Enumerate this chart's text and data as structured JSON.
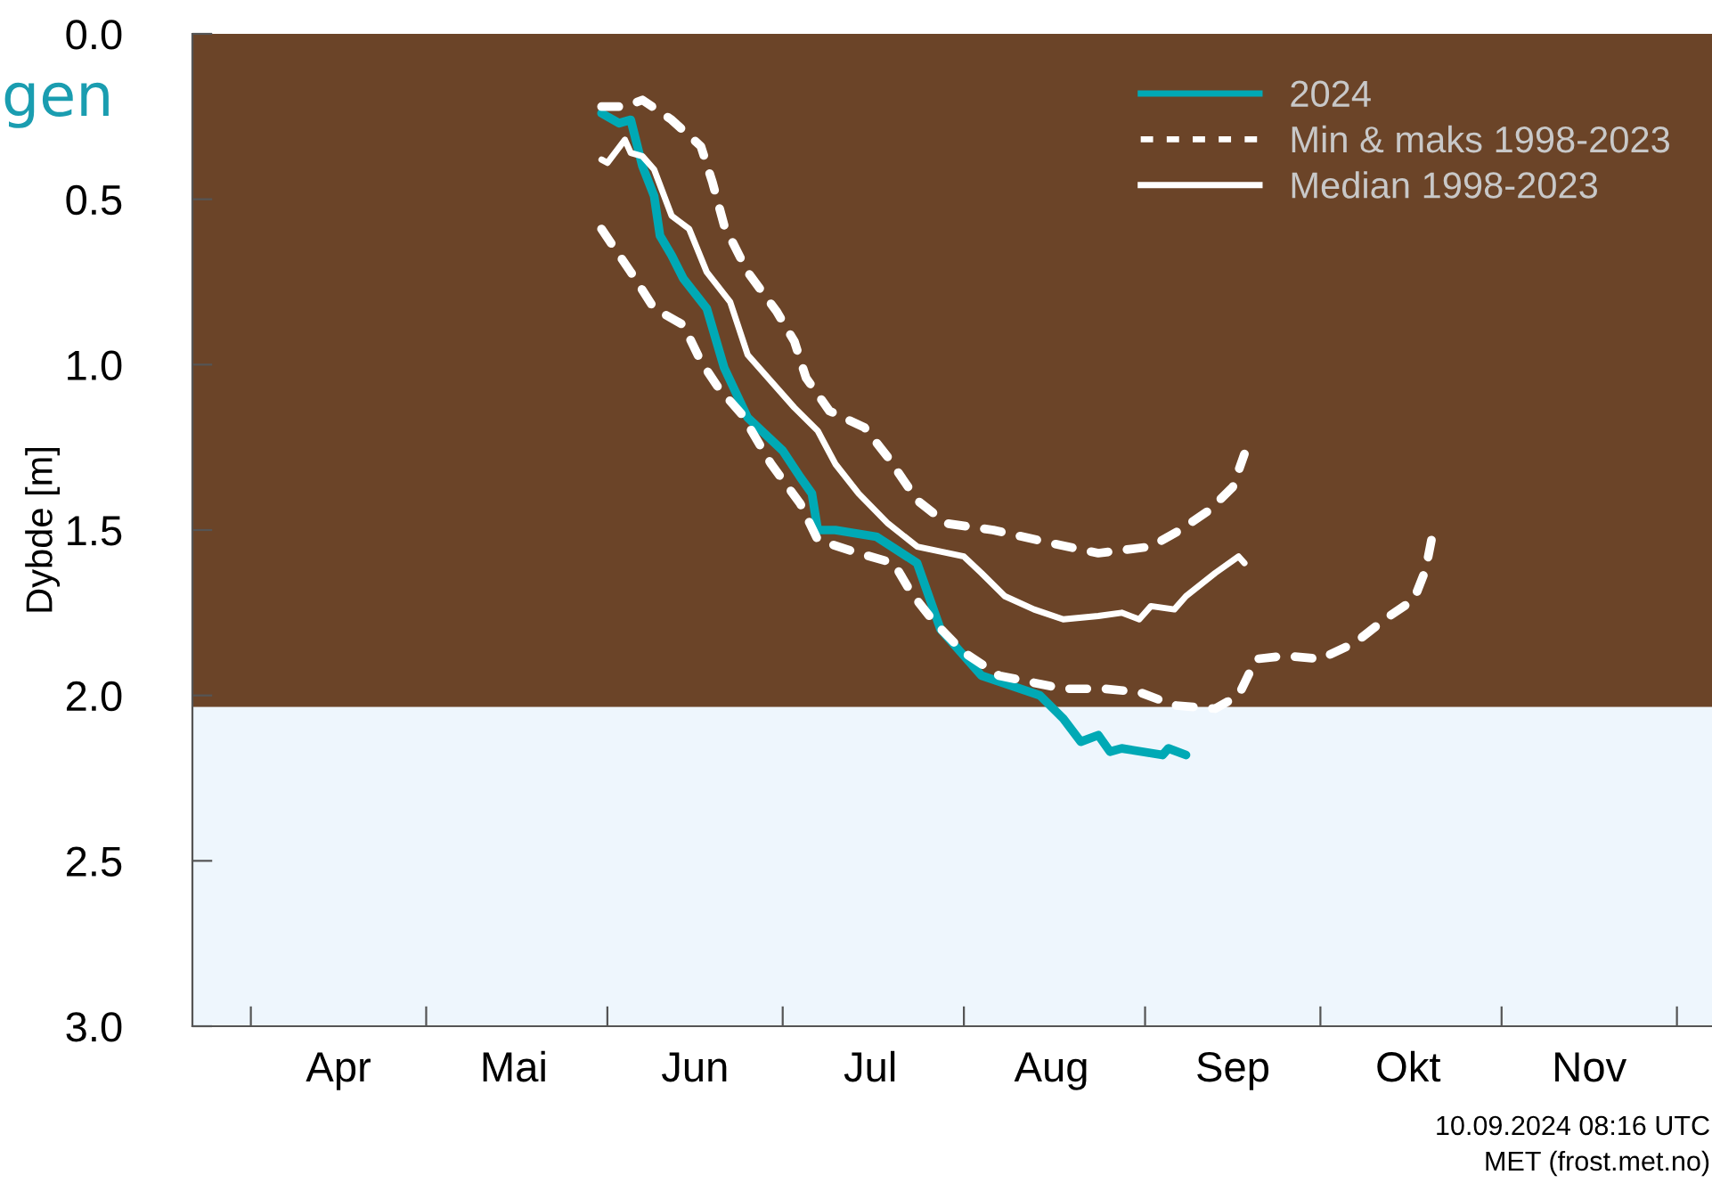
{
  "chart_data": {
    "type": "line",
    "ylabel": "Dybde [m]",
    "annotations": [
      "gen",
      "10.09.2024 08:16 UTC",
      "MET (frost.met.no)"
    ],
    "x": [
      "2024-05-31",
      "2024-06-03",
      "2024-06-05",
      "2024-06-07",
      "2024-06-09",
      "2024-06-10",
      "2024-06-12",
      "2024-06-14",
      "2024-06-18",
      "2024-06-21",
      "2024-06-25",
      "2024-07-01",
      "2024-07-04",
      "2024-07-06",
      "2024-07-07",
      "2024-07-10",
      "2024-07-17",
      "2024-07-24",
      "2024-07-28",
      "2024-08-04",
      "2024-08-14",
      "2024-08-18",
      "2024-08-21",
      "2024-08-24",
      "2024-08-26",
      "2024-08-28",
      "2024-09-04",
      "2024-09-05",
      "2024-09-08"
    ],
    "series": [
      {
        "name": "2024",
        "color": "#00a9b5",
        "line_style": "solid",
        "values": [
          0.24,
          0.27,
          0.26,
          0.4,
          0.49,
          0.61,
          0.67,
          0.74,
          0.83,
          1.01,
          1.16,
          1.26,
          1.34,
          1.39,
          1.5,
          1.5,
          1.52,
          1.6,
          1.8,
          1.94,
          2.0,
          2.07,
          2.14,
          2.12,
          2.17,
          2.16,
          2.18,
          2.16,
          2.18
        ]
      },
      {
        "name": "Min & maks 1998-2023",
        "color": "#ffffff",
        "line_style": "dashed",
        "x": [
          "2024-05-31",
          "2024-06-04",
          "2024-06-07",
          "2024-06-12",
          "2024-06-17",
          "2024-06-19",
          "2024-06-21",
          "2024-06-25",
          "2024-06-30",
          "2024-07-03",
          "2024-07-05",
          "2024-07-09",
          "2024-07-15",
          "2024-07-19",
          "2024-07-24",
          "2024-07-29",
          "2024-08-06",
          "2024-08-16",
          "2024-08-24",
          "2024-09-02",
          "2024-09-07",
          "2024-09-12",
          "2024-09-16",
          "2024-09-18"
        ],
        "values": [
          0.22,
          0.22,
          0.2,
          0.26,
          0.34,
          0.45,
          0.58,
          0.72,
          0.84,
          0.93,
          1.04,
          1.14,
          1.19,
          1.28,
          1.41,
          1.48,
          1.5,
          1.54,
          1.57,
          1.55,
          1.5,
          1.44,
          1.37,
          1.27
        ]
      },
      {
        "color": "#ffffff",
        "line_style": "dashed",
        "x": [
          "2024-05-31",
          "2024-06-05",
          "2024-06-09",
          "2024-06-14",
          "2024-06-17",
          "2024-06-20",
          "2024-06-24",
          "2024-06-29",
          "2024-07-04",
          "2024-07-07",
          "2024-07-14",
          "2024-07-20",
          "2024-07-23",
          "2024-07-27",
          "2024-08-01",
          "2024-08-07",
          "2024-08-18",
          "2024-08-25",
          "2024-08-31",
          "2024-09-06",
          "2024-09-13",
          "2024-09-17",
          "2024-09-20",
          "2024-09-25",
          "2024-10-01",
          "2024-10-07",
          "2024-10-12",
          "2024-10-17",
          "2024-10-19",
          "2024-10-20",
          "2024-10-21"
        ],
        "values": [
          0.59,
          0.72,
          0.83,
          0.88,
          0.99,
          1.07,
          1.15,
          1.3,
          1.42,
          1.53,
          1.57,
          1.6,
          1.69,
          1.78,
          1.87,
          1.94,
          1.98,
          1.98,
          1.99,
          2.03,
          2.04,
          2.0,
          1.89,
          1.88,
          1.89,
          1.84,
          1.77,
          1.71,
          1.62,
          1.53,
          1.49
        ]
      },
      {
        "name": "Median 1998-2023",
        "color": "#ffffff",
        "line_style": "solid",
        "x": [
          "2024-05-31",
          "2024-06-01",
          "2024-06-04",
          "2024-06-05",
          "2024-06-07",
          "2024-06-09",
          "2024-06-12",
          "2024-06-15",
          "2024-06-18",
          "2024-06-22",
          "2024-06-25",
          "2024-07-03",
          "2024-07-07",
          "2024-07-10",
          "2024-07-14",
          "2024-07-19",
          "2024-07-24",
          "2024-08-01",
          "2024-08-04",
          "2024-08-08",
          "2024-08-13",
          "2024-08-18",
          "2024-08-24",
          "2024-08-28",
          "2024-08-31",
          "2024-09-02",
          "2024-09-06",
          "2024-09-08",
          "2024-09-13",
          "2024-09-17",
          "2024-09-18"
        ],
        "values": [
          0.38,
          0.39,
          0.32,
          0.36,
          0.37,
          0.41,
          0.55,
          0.59,
          0.72,
          0.81,
          0.97,
          1.13,
          1.2,
          1.3,
          1.39,
          1.48,
          1.55,
          1.58,
          1.63,
          1.7,
          1.74,
          1.77,
          1.76,
          1.75,
          1.77,
          1.73,
          1.74,
          1.7,
          1.63,
          1.58,
          1.6
        ]
      }
    ],
    "bands": [
      {
        "axis": "y",
        "from": 0.0,
        "to": 2.035,
        "color": "#6b4428"
      },
      {
        "axis": "y",
        "from": 2.035,
        "to": 3.0,
        "color": "#eef6fd"
      }
    ],
    "xlim": [
      "2024-03-22",
      "2024-12-07"
    ],
    "xticks": [
      {
        "value": "2024-04-01",
        "label": null
      },
      {
        "value": "2024-05-01",
        "label": null
      },
      {
        "value": "2024-06-01",
        "label": null
      },
      {
        "value": "2024-07-01",
        "label": null
      },
      {
        "value": "2024-08-01",
        "label": null
      },
      {
        "value": "2024-09-01",
        "label": null
      },
      {
        "value": "2024-10-01",
        "label": null
      },
      {
        "value": "2024-11-01",
        "label": null
      },
      {
        "value": "2024-12-01",
        "label": null
      },
      {
        "value": "2024-04-16",
        "label": "Apr"
      },
      {
        "value": "2024-05-16",
        "label": "Mai"
      },
      {
        "value": "2024-06-16",
        "label": "Jun"
      },
      {
        "value": "2024-07-16",
        "label": "Jul"
      },
      {
        "value": "2024-08-16",
        "label": "Aug"
      },
      {
        "value": "2024-09-16",
        "label": "Sep"
      },
      {
        "value": "2024-10-16",
        "label": "Okt"
      },
      {
        "value": "2024-11-16",
        "label": "Nov"
      }
    ],
    "ylim": [
      3.0,
      0.0
    ],
    "yticks": [
      {
        "value": 0.0,
        "label": "0.0"
      },
      {
        "value": 0.5,
        "label": "0.5"
      },
      {
        "value": 1.0,
        "label": "1.0"
      },
      {
        "value": 1.5,
        "label": "1.5"
      },
      {
        "value": 2.0,
        "label": "2.0"
      },
      {
        "value": 2.5,
        "label": "2.5"
      },
      {
        "value": 3.0,
        "label": "3.0"
      }
    ],
    "grid": false,
    "legend": "top right",
    "marker": "none"
  }
}
